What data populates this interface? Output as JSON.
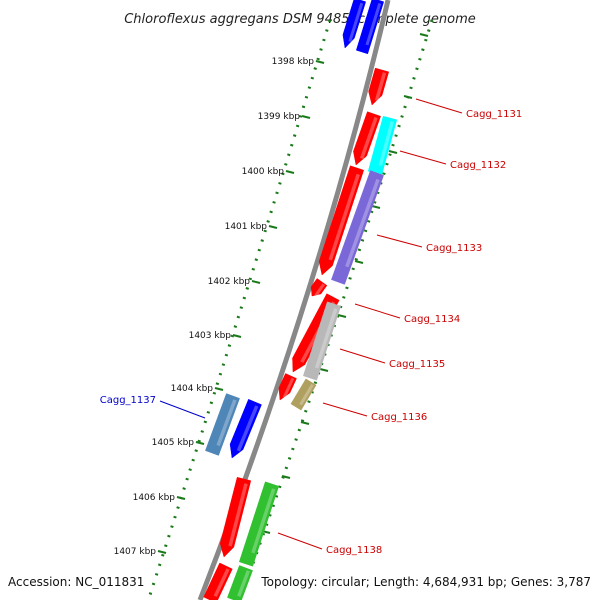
{
  "title": "Chloroflexus aggregans DSM 9485, complete genome",
  "accession": "Accession: NC_011831",
  "topology": "Topology: circular; Length: 4,684,931 bp; Genes: 3,787",
  "ticks": [
    "1398 kbp",
    "1399 kbp",
    "1400 kbp",
    "1401 kbp",
    "1402 kbp",
    "1403 kbp",
    "1404 kbp",
    "1405 kbp",
    "1406 kbp",
    "1407 kbp"
  ],
  "colors": {
    "backbone": "#888888",
    "tick": "#1a7a1a",
    "red": "#ff0000",
    "blue": "#0000ff",
    "cyan": "#00ffff",
    "purple": "#7a68d8",
    "steelblue": "#4f86b8",
    "gray": "#b8b8b8",
    "olive": "#b0a060",
    "green": "#30c030",
    "label_red": "#cc0000",
    "label_blue": "#0000cc"
  },
  "genes": [
    {
      "name": "Cagg_1131",
      "color": "label_red"
    },
    {
      "name": "Cagg_1132",
      "color": "label_red"
    },
    {
      "name": "Cagg_1133",
      "color": "label_red"
    },
    {
      "name": "Cagg_1134",
      "color": "label_red"
    },
    {
      "name": "Cagg_1135",
      "color": "label_red"
    },
    {
      "name": "Cagg_1136",
      "color": "label_red"
    },
    {
      "name": "Cagg_1137",
      "color": "label_blue"
    },
    {
      "name": "Cagg_1138",
      "color": "label_red"
    }
  ]
}
